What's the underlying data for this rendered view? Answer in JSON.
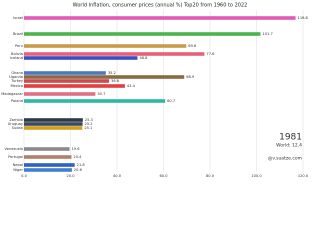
{
  "chart_data": {
    "type": "bar",
    "orientation": "horizontal",
    "title": "World Inflation, consumer prices (annual %) Top20 from 1960 to 2022",
    "year": "1981",
    "world": "World: 12.4",
    "watermark": "@v.suatze.com",
    "categories": [
      "Israel",
      "Brazil",
      "Peru",
      "Bolivia",
      "Iceland",
      "Ghana",
      "Uganda",
      "Turkey",
      "Mexico",
      "Madagascar",
      "Poland",
      "Zambia",
      "Uruguay",
      "Sudan",
      "Venezuela",
      "Portugal",
      "Nepal",
      "Niger"
    ],
    "values": [
      116.8,
      101.7,
      69.8,
      77.6,
      48.8,
      35.2,
      68.9,
      36.6,
      43.4,
      30.7,
      60.7,
      25.3,
      25.2,
      25.1,
      19.6,
      20.4,
      21.8,
      20.6
    ],
    "colors": [
      "#e05ab8",
      "#4db34d",
      "#c99a4a",
      "#e8607a",
      "#3a4fc4",
      "#4a78c8",
      "#8a6a3e",
      "#d0484e",
      "#e04040",
      "#e0708a",
      "#2fb6a6",
      "#2e3a4a",
      "#3a4a5a",
      "#d0a020",
      "#8a8a8a",
      "#b0806a",
      "#3060c0",
      "#4080d0"
    ],
    "xlim": [
      0,
      120
    ],
    "xticks": [
      {
        "value": 0,
        "label": "0.0"
      },
      {
        "value": 20,
        "label": "20.0"
      },
      {
        "value": 40,
        "label": "40.0"
      },
      {
        "value": 60,
        "label": "60.0"
      },
      {
        "value": 80,
        "label": "80.0"
      },
      {
        "value": 100,
        "label": "100.0"
      },
      {
        "value": 120,
        "label": "120.0"
      }
    ],
    "grid": true
  }
}
